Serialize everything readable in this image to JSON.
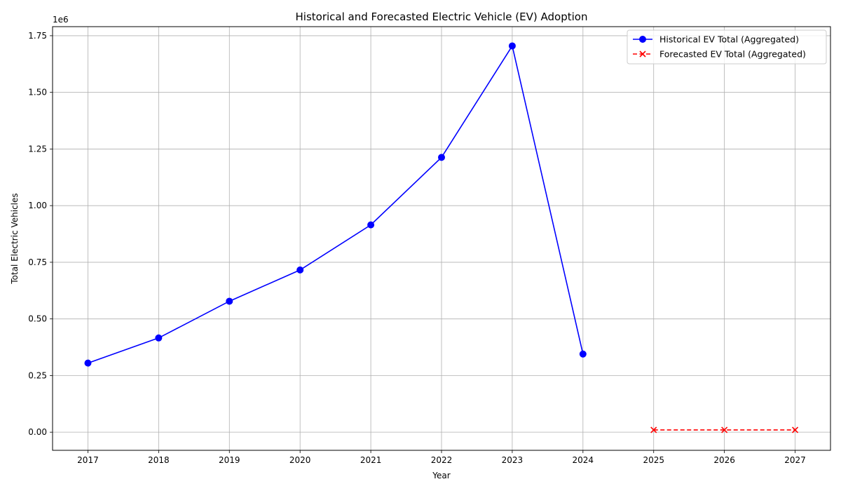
{
  "chart_data": {
    "type": "line",
    "title": "Historical and Forecasted Electric Vehicle (EV) Adoption",
    "xlabel": "Year",
    "ylabel": "Total Electric Vehicles",
    "y_offset_text": "1e6",
    "xlim": [
      2016.5,
      2027.5
    ],
    "ylim": [
      -80000,
      1790000
    ],
    "x_ticks": [
      2017,
      2018,
      2019,
      2020,
      2021,
      2022,
      2023,
      2024,
      2025,
      2026,
      2027
    ],
    "x_tick_labels": [
      "2017",
      "2018",
      "2019",
      "2020",
      "2021",
      "2022",
      "2023",
      "2024",
      "2025",
      "2026",
      "2027"
    ],
    "y_ticks": [
      0,
      250000,
      500000,
      750000,
      1000000,
      1250000,
      1500000,
      1750000
    ],
    "y_tick_labels": [
      "0.00",
      "0.25",
      "0.50",
      "0.75",
      "1.00",
      "1.25",
      "1.50",
      "1.75"
    ],
    "grid": true,
    "legend_position": "upper right",
    "series": [
      {
        "name": "Historical EV Total (Aggregated)",
        "color": "#0000ff",
        "line_style": "solid",
        "marker": "circle",
        "x": [
          2017,
          2018,
          2019,
          2020,
          2021,
          2022,
          2023,
          2024
        ],
        "y": [
          305000,
          416000,
          578000,
          716000,
          915000,
          1213000,
          1705000,
          345000
        ]
      },
      {
        "name": "Forecasted EV Total (Aggregated)",
        "color": "#ff0000",
        "line_style": "dashed",
        "marker": "x",
        "x": [
          2025,
          2026,
          2027
        ],
        "y": [
          10000,
          10000,
          10000
        ]
      }
    ]
  }
}
